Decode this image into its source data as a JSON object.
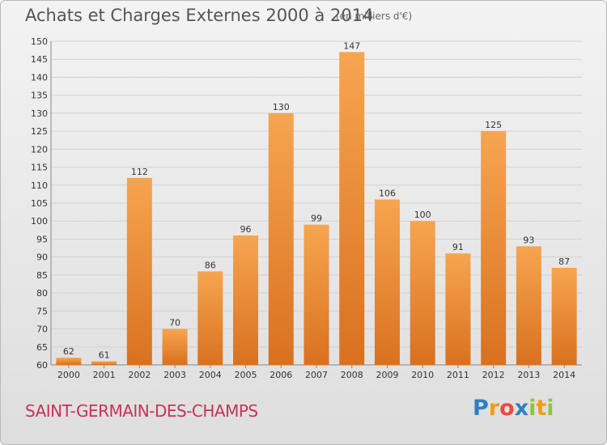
{
  "header": {
    "title": "Achats et Charges Externes 2000 à 2014",
    "subtitle": "(en milliers d'€)"
  },
  "footer": {
    "city": "SAINT-GERMAIN-DES-CHAMPS",
    "brand_letters": [
      "P",
      "r",
      "o",
      "x",
      "i",
      "t",
      "i"
    ],
    "brand_colors": [
      "#2f7fc1",
      "#f39c12",
      "#e74c3c",
      "#2f7fc1",
      "#8dc63f",
      "#f39c12",
      "#8dc63f"
    ]
  },
  "colors": {
    "bar_light": "#f7a550",
    "bar_dark": "#d9711f",
    "grid": "#d2d2d2",
    "axis_text": "#333333"
  },
  "chart_data": {
    "type": "bar",
    "title": "Achats et Charges Externes 2000 à 2014",
    "subtitle": "(en milliers d'€)",
    "categories": [
      "2000",
      "2001",
      "2002",
      "2003",
      "2004",
      "2005",
      "2006",
      "2007",
      "2008",
      "2009",
      "2010",
      "2011",
      "2012",
      "2013",
      "2014"
    ],
    "values": [
      62,
      61,
      112,
      70,
      86,
      96,
      130,
      99,
      147,
      106,
      100,
      91,
      125,
      93,
      87
    ],
    "ylim": [
      60,
      150
    ],
    "ytick_step": 5,
    "grid": true,
    "xlabel": "",
    "ylabel": ""
  }
}
